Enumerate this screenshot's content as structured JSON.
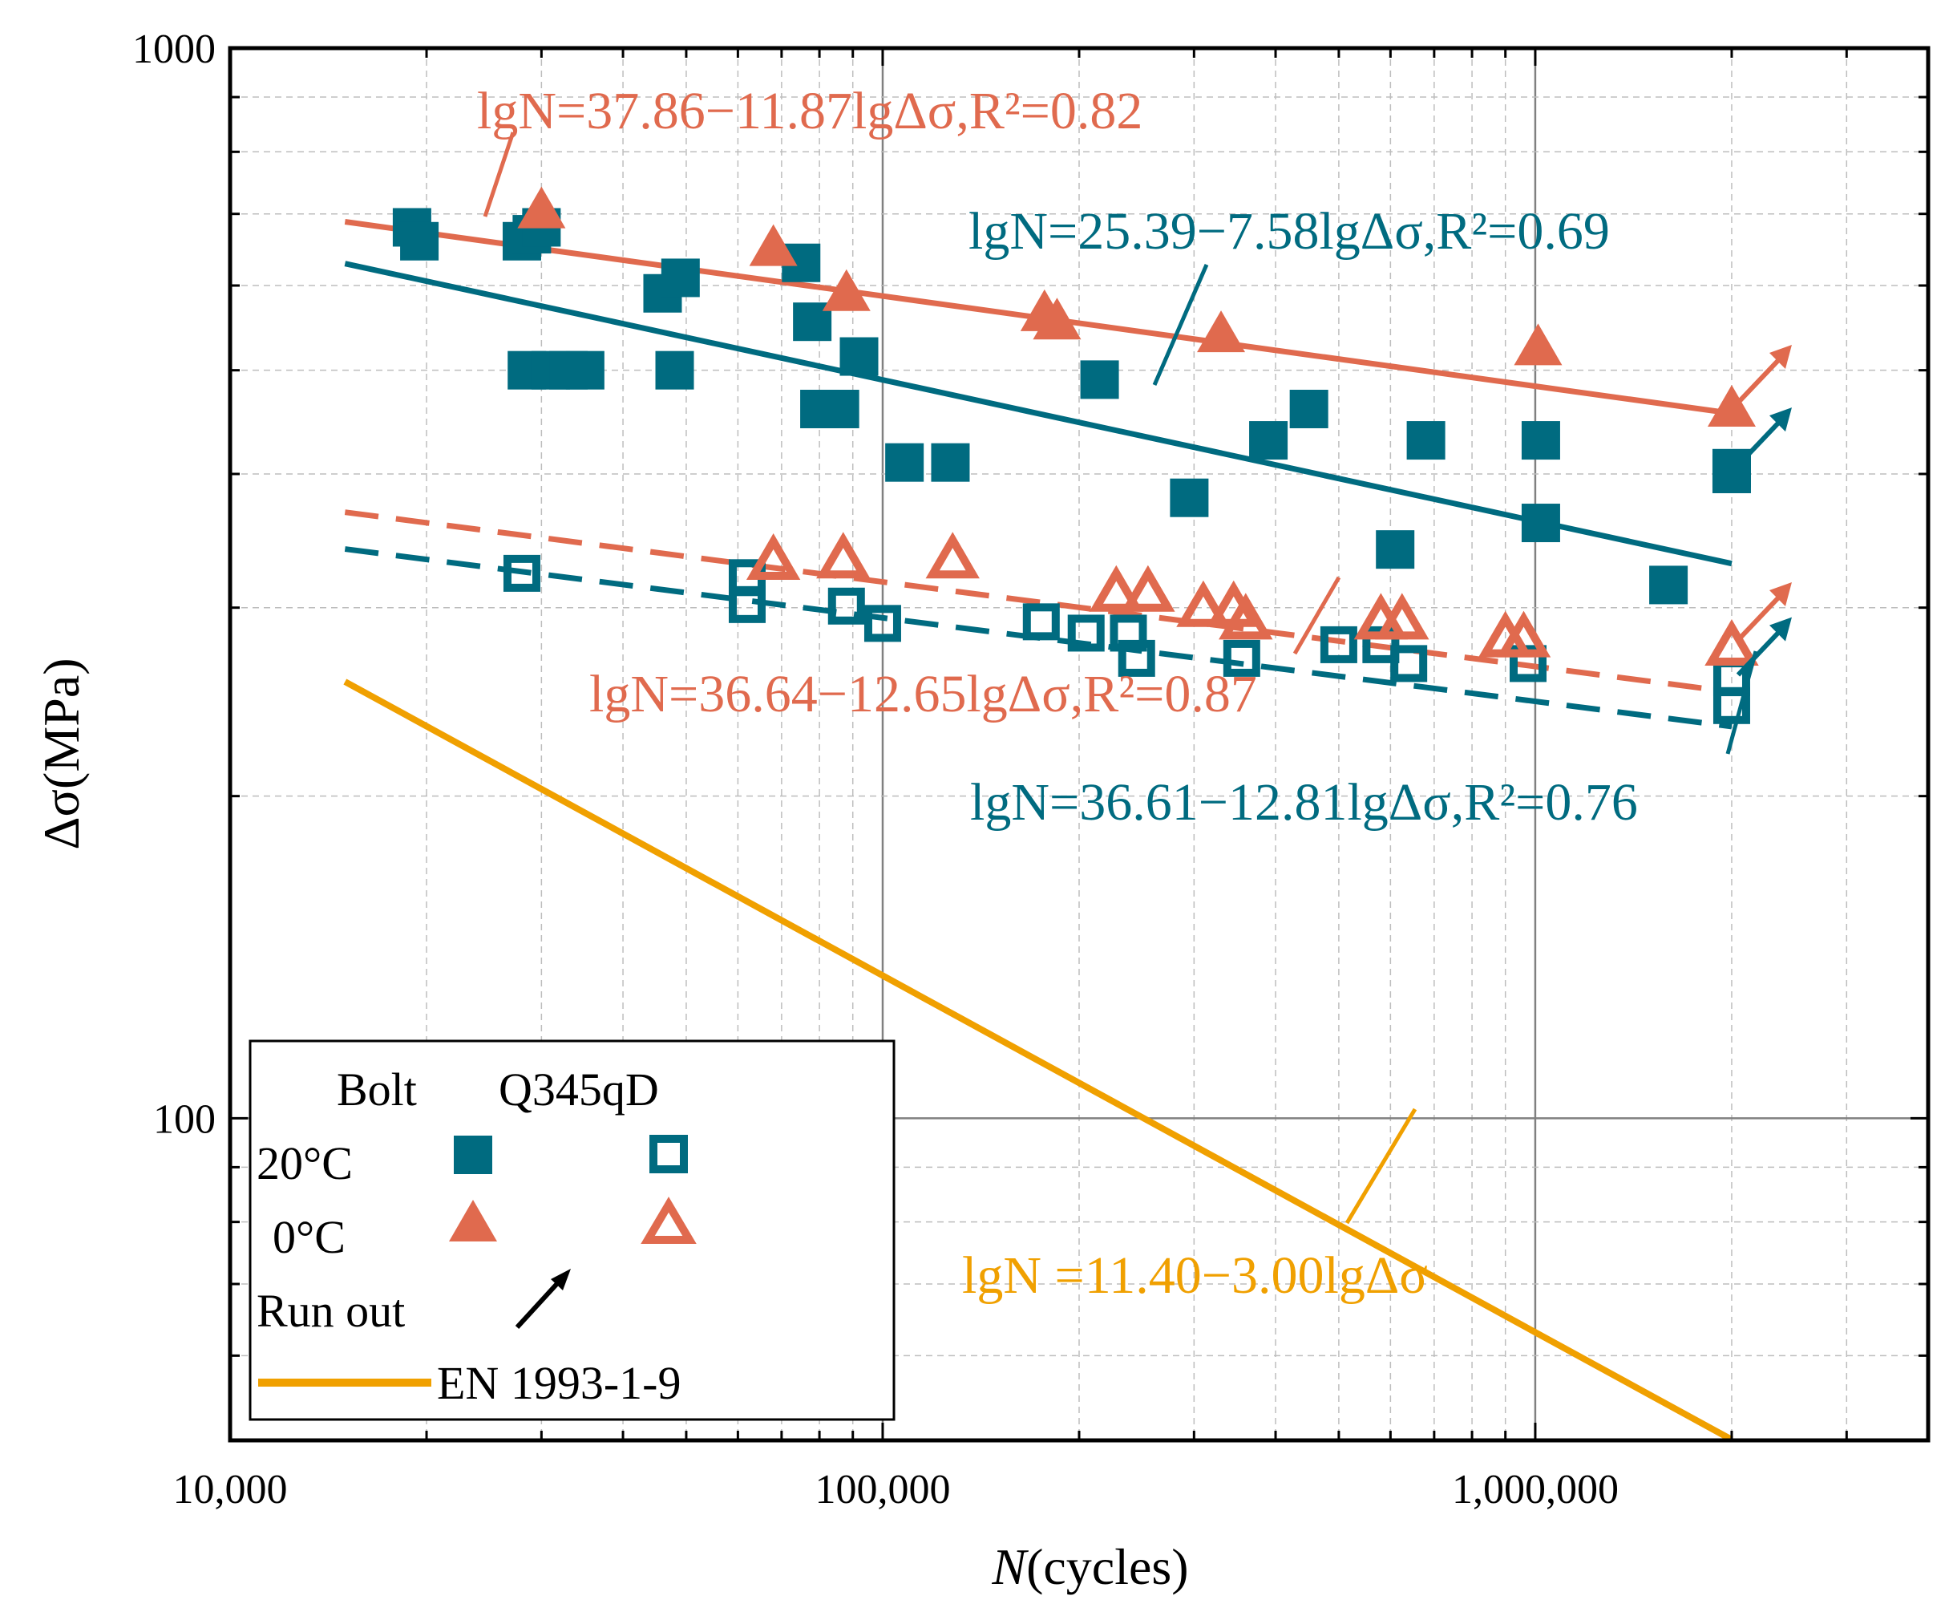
{
  "colors": {
    "teal": "#006b80",
    "salmon": "#e06a4e",
    "orange": "#f0a000",
    "axis": "#000000",
    "grid_major": "#808080",
    "grid_minor": "#bdbdbd"
  },
  "chart_data": {
    "type": "scatter",
    "xscale": "log",
    "yscale": "log",
    "xlim": [
      10000,
      4000000
    ],
    "ylim": [
      50,
      1000
    ],
    "grid": true,
    "legend_position": "bottom-left",
    "xlabel_italic": "N",
    "xlabel_rest": "(cycles)",
    "ylabel": "Δσ(MPa)",
    "x_ticks": [
      {
        "value": 10000,
        "label": "10,000"
      },
      {
        "value": 100000,
        "label": "100,000"
      },
      {
        "value": 1000000,
        "label": "1,000,000"
      }
    ],
    "y_ticks": [
      {
        "value": 100,
        "label": "100"
      },
      {
        "value": 1000,
        "label": "1000"
      }
    ],
    "series": [
      {
        "name": "Bolt 20°C",
        "color": "#006b80",
        "marker": "square-filled",
        "points": [
          [
            19000,
            680
          ],
          [
            19500,
            660
          ],
          [
            28000,
            660
          ],
          [
            29000,
            670
          ],
          [
            30000,
            680
          ],
          [
            28500,
            500
          ],
          [
            31000,
            500
          ],
          [
            33000,
            500
          ],
          [
            35000,
            500
          ],
          [
            46000,
            590
          ],
          [
            49000,
            610
          ],
          [
            48000,
            500
          ],
          [
            75000,
            630
          ],
          [
            78000,
            555
          ],
          [
            80000,
            460
          ],
          [
            86000,
            460
          ],
          [
            92000,
            515
          ],
          [
            108000,
            410
          ],
          [
            127000,
            410
          ],
          [
            215000,
            490
          ],
          [
            295000,
            380
          ],
          [
            390000,
            430
          ],
          [
            450000,
            460
          ],
          [
            610000,
            340
          ],
          [
            680000,
            430
          ],
          [
            1020000,
            360
          ],
          [
            1020000,
            430
          ],
          [
            1600000,
            315
          ],
          [
            2000000,
            405
          ],
          [
            2000000,
            400
          ]
        ]
      },
      {
        "name": "Q345qD 20°C",
        "color": "#006b80",
        "marker": "square-open",
        "points": [
          [
            28000,
            323
          ],
          [
            62000,
            320
          ],
          [
            62000,
            302
          ],
          [
            88000,
            301
          ],
          [
            100000,
            290
          ],
          [
            175000,
            291
          ],
          [
            205000,
            284
          ],
          [
            238000,
            284
          ],
          [
            245000,
            269
          ],
          [
            355000,
            269
          ],
          [
            500000,
            277
          ],
          [
            580000,
            277
          ],
          [
            640000,
            266
          ],
          [
            975000,
            266
          ],
          [
            2000000,
            258
          ],
          [
            2000000,
            243
          ]
        ]
      },
      {
        "name": "Bolt 0°C",
        "color": "#e06a4e",
        "marker": "triangle-filled",
        "points": [
          [
            30000,
            705
          ],
          [
            68000,
            650
          ],
          [
            88000,
            590
          ],
          [
            177000,
            565
          ],
          [
            185000,
            555
          ],
          [
            330000,
            540
          ],
          [
            1010000,
            525
          ],
          [
            2000000,
            460
          ]
        ]
      },
      {
        "name": "Q345qD 0°C",
        "color": "#e06a4e",
        "marker": "triangle-open",
        "points": [
          [
            68000,
            332
          ],
          [
            87000,
            333
          ],
          [
            128000,
            333
          ],
          [
            228000,
            310
          ],
          [
            255000,
            310
          ],
          [
            310000,
            300
          ],
          [
            345000,
            300
          ],
          [
            360000,
            292
          ],
          [
            580000,
            292
          ],
          [
            625000,
            292
          ],
          [
            900000,
            281
          ],
          [
            960000,
            281
          ],
          [
            2000000,
            276
          ]
        ]
      }
    ],
    "fit_lines": [
      {
        "label": "lgN=37.86−11.87lgΔσ,R²=0.82",
        "intercept": 37.86,
        "slope": 11.87,
        "r2": 0.82,
        "color": "#e06a4e",
        "style": "solid",
        "x_range": [
          15000,
          2000000
        ]
      },
      {
        "label": "lgN=25.39−7.58lgΔσ,R²=0.69",
        "intercept": 25.39,
        "slope": 7.58,
        "r2": 0.69,
        "color": "#006b80",
        "style": "solid",
        "x_range": [
          15000,
          2000000
        ]
      },
      {
        "label": "lgN=36.64−12.65lgΔσ,R²=0.87",
        "intercept": 36.64,
        "slope": 12.65,
        "r2": 0.87,
        "color": "#e06a4e",
        "style": "dashed",
        "x_range": [
          15000,
          2000000
        ]
      },
      {
        "label": "lgN=36.61−12.81lgΔσ,R²=0.76",
        "intercept": 36.61,
        "slope": 12.81,
        "r2": 0.76,
        "color": "#006b80",
        "style": "dashed",
        "x_range": [
          15000,
          2000000
        ]
      },
      {
        "label": "lgN =11.40−3.00lgΔσ",
        "intercept": 11.4,
        "slope": 3.0,
        "color": "#f0a000",
        "style": "solid",
        "x_range": [
          15000,
          2000000
        ]
      }
    ],
    "run_outs": [
      {
        "x": 2000000,
        "y": 460,
        "color": "#e06a4e"
      },
      {
        "x": 2000000,
        "y": 402,
        "color": "#006b80"
      },
      {
        "x": 2000000,
        "y": 276,
        "color": "#e06a4e"
      },
      {
        "x": 2000000,
        "y": 256,
        "color": "#006b80"
      }
    ],
    "legend": {
      "header_bolt": "Bolt",
      "header_steel": "Q345qD",
      "row_20": "20°C",
      "row_0": "0°C",
      "run_out": "Run out",
      "en_line": "EN 1993-1-9"
    }
  }
}
